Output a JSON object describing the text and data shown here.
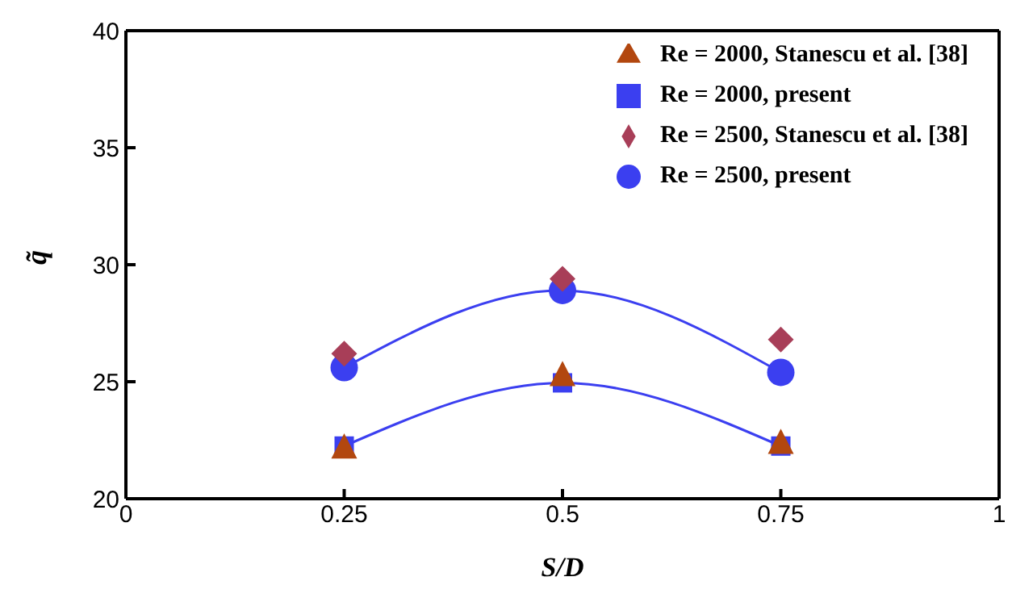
{
  "chart_data": {
    "type": "line",
    "xlabel": "S/D",
    "ylabel": "q̃",
    "xlim": [
      0,
      1
    ],
    "xticks": [
      0,
      0.25,
      0.5,
      0.75,
      1
    ],
    "ylim": [
      20,
      40
    ],
    "yticks": [
      20,
      25,
      30,
      35,
      40
    ],
    "grid": false,
    "legend": "top right",
    "series": [
      {
        "name": "Re = 2000, present",
        "marker": "square",
        "color": "#3b3ff0",
        "x": [
          0.25,
          0.5,
          0.75
        ],
        "values": [
          22.25,
          24.95,
          22.25
        ]
      },
      {
        "name": "Re = 2000, Stanescu et al. [38]",
        "type": "scatter",
        "marker": "triangle",
        "color": "#b2470f",
        "x": [
          0.25,
          0.5,
          0.75
        ],
        "values": [
          22.1,
          25.2,
          22.3
        ]
      },
      {
        "name": "Re = 2500, present",
        "marker": "circle",
        "color": "#3b3ff0",
        "x": [
          0.25,
          0.5,
          0.75
        ],
        "values": [
          25.6,
          28.9,
          25.4
        ]
      },
      {
        "name": "Re = 2500, Stanescu et al. [38]",
        "type": "scatter",
        "marker": "diamond",
        "color": "#a83e58",
        "x": [
          0.25,
          0.5,
          0.75
        ],
        "values": [
          26.2,
          29.4,
          26.8
        ]
      }
    ]
  }
}
